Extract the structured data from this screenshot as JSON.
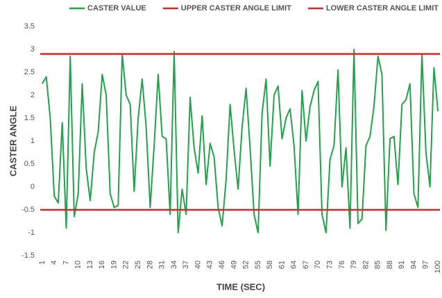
{
  "chart_data": {
    "type": "line",
    "x_label": "TIME (SEC)",
    "y_label": "CASTER ANGLE",
    "categories": [
      1,
      null,
      null,
      4,
      null,
      null,
      7,
      null,
      null,
      10,
      null,
      null,
      13,
      null,
      null,
      16,
      null,
      null,
      19,
      null,
      null,
      22,
      null,
      null,
      25,
      null,
      null,
      28,
      null,
      null,
      31,
      null,
      null,
      34,
      null,
      null,
      37,
      null,
      null,
      40,
      null,
      null,
      43,
      null,
      null,
      46,
      null,
      null,
      49,
      null,
      null,
      52,
      null,
      null,
      55,
      null,
      null,
      58,
      null,
      null,
      61,
      null,
      null,
      64,
      null,
      null,
      67,
      null,
      null,
      70,
      null,
      null,
      73,
      null,
      null,
      76,
      null,
      null,
      79,
      null,
      null,
      82,
      null,
      null,
      85,
      null,
      null,
      88,
      null,
      null,
      91,
      null,
      null,
      94,
      null,
      null,
      97,
      null,
      null,
      100
    ],
    "series": [
      {
        "name": "CASTER VALUE",
        "color": "#22a24a",
        "values": [
          2.25,
          2.4,
          1.5,
          -0.2,
          -0.35,
          1.4,
          -0.9,
          2.85,
          -0.65,
          -0.15,
          2.25,
          0.4,
          -0.3,
          0.75,
          1.2,
          2.45,
          2.0,
          -0.15,
          -0.45,
          -0.4,
          2.9,
          2.0,
          1.8,
          -0.1,
          1.5,
          2.35,
          1.3,
          -0.45,
          0.9,
          2.45,
          1.1,
          1.05,
          -0.6,
          2.95,
          -1.0,
          -0.05,
          -0.6,
          1.95,
          0.85,
          0.3,
          1.55,
          0.05,
          0.95,
          0.65,
          -0.45,
          -0.85,
          0.15,
          1.8,
          0.8,
          -0.05,
          1.3,
          2.15,
          0.85,
          -0.6,
          -1.0,
          1.6,
          2.35,
          0.45,
          2.0,
          2.2,
          1.05,
          1.5,
          1.7,
          0.9,
          -0.6,
          2.1,
          1.0,
          1.75,
          2.1,
          2.3,
          -0.6,
          -1.0,
          0.6,
          0.9,
          2.55,
          0.0,
          0.85,
          -0.9,
          3.0,
          -0.8,
          -0.7,
          0.9,
          1.1,
          1.75,
          2.85,
          2.45,
          -0.95,
          1.05,
          1.1,
          0.05,
          1.8,
          1.9,
          2.25,
          -0.15,
          -0.45,
          2.9,
          0.75,
          0.0,
          2.6,
          1.65
        ]
      }
    ],
    "limits": [
      {
        "name": "UPPER CASTER ANGLE LIMIT",
        "color": "#d42a2a",
        "value": 2.9
      },
      {
        "name": "LOWER CASTER ANGLE LIMIT",
        "color": "#d42a2a",
        "value": -0.5
      }
    ],
    "ylim": [
      -1.5,
      3.5
    ],
    "yticks": [
      -1.5,
      -1,
      -0.5,
      0,
      0.5,
      1,
      1.5,
      2,
      2.5,
      3,
      3.5
    ],
    "grid": false
  }
}
